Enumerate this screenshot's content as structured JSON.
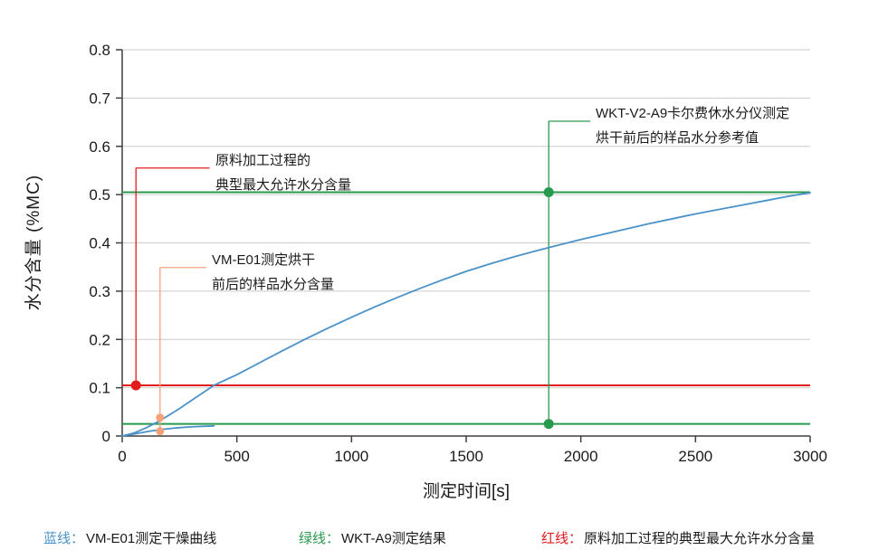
{
  "colors": {
    "blue": "#4b92c8",
    "green": "#289a4e",
    "red": "#e21b1b",
    "orange": "#f2a17b",
    "grid": "#cbcbcb",
    "axis": "#3f3f3f",
    "text": "#1a1a1a"
  },
  "chart_data": {
    "type": "line",
    "title": "",
    "xlabel": "测定时间[s]",
    "ylabel": "水分含量 (%MC)",
    "xlim": [
      0,
      3000
    ],
    "ylim": [
      0,
      0.8
    ],
    "x_ticks": [
      0,
      500,
      1000,
      1500,
      2000,
      2500,
      3000
    ],
    "y_ticks": [
      0,
      0.1,
      0.2,
      0.3,
      0.4,
      0.5,
      0.6,
      0.7,
      0.8
    ],
    "y_tick_labels": [
      "0",
      "0.1",
      "0.2",
      "0.3",
      "0.4",
      "0.5",
      "0.6",
      "0.7",
      "0.8"
    ],
    "grid": "horizontal",
    "legend_position": "bottom",
    "series": [
      {
        "id": "drying-curve-before",
        "color": "blue",
        "points": [
          [
            0,
            0
          ],
          [
            50,
            0.006
          ],
          [
            100,
            0.016
          ],
          [
            150,
            0.028
          ],
          [
            200,
            0.042
          ],
          [
            250,
            0.057
          ],
          [
            300,
            0.073
          ],
          [
            350,
            0.089
          ],
          [
            400,
            0.105
          ],
          [
            500,
            0.127
          ],
          [
            600,
            0.152
          ],
          [
            700,
            0.177
          ],
          [
            800,
            0.201
          ],
          [
            900,
            0.224
          ],
          [
            1000,
            0.246
          ],
          [
            1100,
            0.267
          ],
          [
            1200,
            0.287
          ],
          [
            1300,
            0.306
          ],
          [
            1400,
            0.324
          ],
          [
            1500,
            0.341
          ],
          [
            1600,
            0.356
          ],
          [
            1700,
            0.37
          ],
          [
            1800,
            0.383
          ],
          [
            1900,
            0.395
          ],
          [
            2000,
            0.407
          ],
          [
            2100,
            0.418
          ],
          [
            2200,
            0.429
          ],
          [
            2300,
            0.44
          ],
          [
            2400,
            0.45
          ],
          [
            2500,
            0.46
          ],
          [
            2600,
            0.469
          ],
          [
            2700,
            0.478
          ],
          [
            2800,
            0.487
          ],
          [
            2900,
            0.496
          ],
          [
            3000,
            0.504
          ]
        ]
      },
      {
        "id": "drying-curve-after",
        "color": "blue",
        "points": [
          [
            0,
            0
          ],
          [
            60,
            0.005
          ],
          [
            120,
            0.01
          ],
          [
            180,
            0.014
          ],
          [
            240,
            0.017
          ],
          [
            300,
            0.019
          ],
          [
            350,
            0.02
          ],
          [
            400,
            0.021
          ]
        ]
      }
    ],
    "hlines": [
      {
        "id": "wkt-reference-upper-line",
        "y": 0.505,
        "color": "green"
      },
      {
        "id": "wkt-reference-lower-line",
        "y": 0.025,
        "color": "green"
      },
      {
        "id": "max-allowed-moisture-line",
        "y": 0.105,
        "color": "red"
      }
    ],
    "markers": [
      {
        "id": "max-allowed-moisture-point",
        "x": 60,
        "y": 0.105,
        "color": "red",
        "r": 5.5
      },
      {
        "id": "vm-e01-before-drying-point",
        "x": 165,
        "y": 0.038,
        "color": "orange",
        "r": 4.5
      },
      {
        "id": "vm-e01-after-drying-point",
        "x": 165,
        "y": 0.01,
        "color": "orange",
        "r": 4.5
      },
      {
        "id": "wkt-upper-reference-point",
        "x": 1860,
        "y": 0.505,
        "color": "green",
        "r": 5.5
      },
      {
        "id": "wkt-lower-reference-point",
        "x": 1860,
        "y": 0.025,
        "color": "green",
        "r": 5.5
      }
    ],
    "annotations": [
      {
        "id": "max-allowed-moisture",
        "color": "red",
        "x": 60,
        "y_bottom": 0.105,
        "y_top": 0.555,
        "text_x": 405,
        "lines": [
          "原料加工过程的",
          "典型最大允许水分含量"
        ]
      },
      {
        "id": "vm-e01-samples",
        "color": "orange",
        "x": 165,
        "y_bottom": 0.01,
        "y_top": 0.349,
        "text_x": 390,
        "lines": [
          "VM-E01测定烘干",
          "前后的样品水分含量"
        ]
      },
      {
        "id": "wkt-v2-a9-reference",
        "color": "green",
        "x": 1860,
        "y_bottom": 0.025,
        "y_top": 0.652,
        "text_x": 2065,
        "lines": [
          "WKT-V2-A9卡尔费休水分仪测定",
          "烘干前后的样品水分参考值"
        ]
      }
    ]
  },
  "legend": [
    {
      "prefix": "蓝线：",
      "label": "VM-E01测定干燥曲线",
      "color": "blue"
    },
    {
      "prefix": "绿线：",
      "label": "WKT-A9测定结果",
      "color": "green"
    },
    {
      "prefix": "红线：",
      "label": "原料加工过程的典型最大允许水分含量",
      "color": "red"
    }
  ]
}
